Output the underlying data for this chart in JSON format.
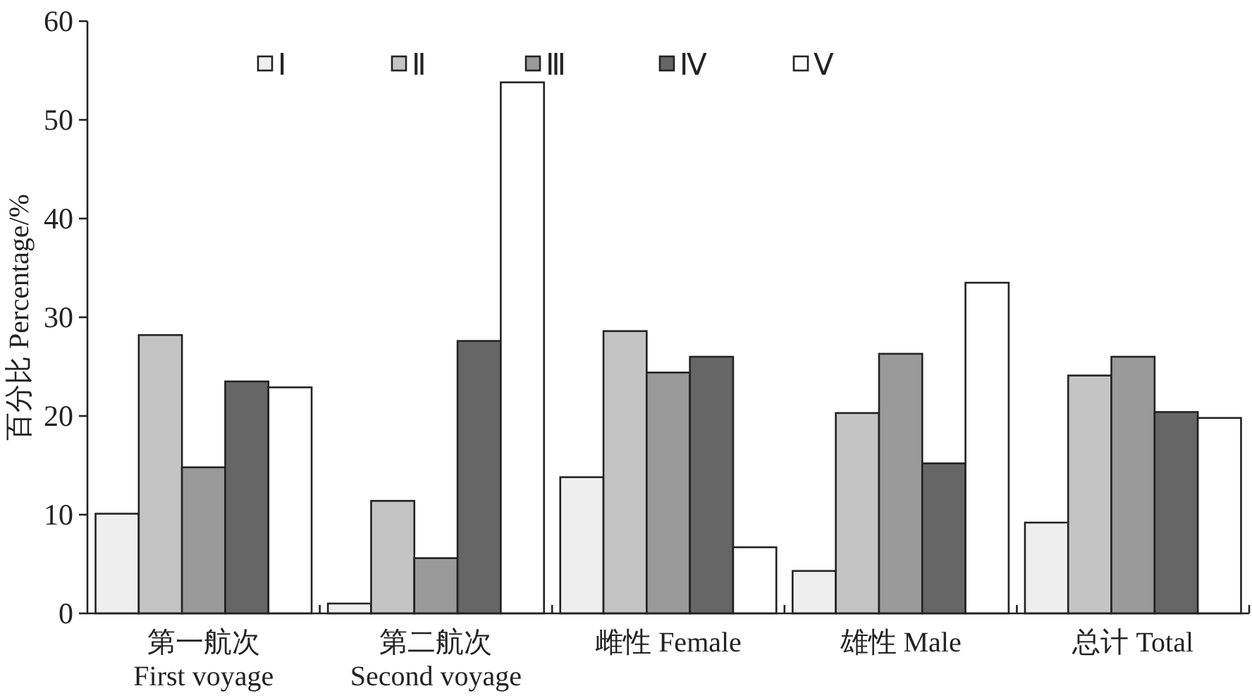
{
  "chart_data": {
    "type": "bar",
    "ylabel": "百分比 Percentage/%",
    "categories": [
      "第一航次\nFirst voyage",
      "第二航次\nSecond voyage",
      "雌性 Female",
      "雄性 Male",
      "总计 Total"
    ],
    "series": [
      {
        "name": "Ⅰ",
        "color": "#eeeeee",
        "values": [
          10.1,
          1.0,
          13.8,
          4.3,
          9.2
        ]
      },
      {
        "name": "Ⅱ",
        "color": "#c4c4c4",
        "values": [
          28.2,
          11.4,
          28.6,
          20.3,
          24.1
        ]
      },
      {
        "name": "Ⅲ",
        "color": "#9a9a9a",
        "values": [
          14.8,
          5.6,
          24.4,
          26.3,
          26.0
        ]
      },
      {
        "name": "Ⅳ",
        "color": "#666666",
        "values": [
          23.5,
          27.6,
          26.0,
          15.2,
          20.4
        ]
      },
      {
        "name": "Ⅴ",
        "color": "#ffffff",
        "values": [
          22.9,
          53.8,
          6.7,
          33.5,
          19.8
        ]
      }
    ],
    "ylim": [
      0,
      60
    ],
    "yticks": [
      0,
      10,
      20,
      30,
      40,
      50,
      60
    ],
    "grid": false,
    "legend": "top"
  }
}
